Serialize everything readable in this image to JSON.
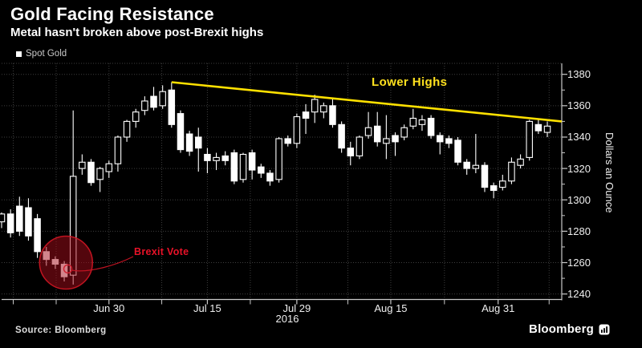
{
  "header": {
    "title": "Gold Facing Resistance",
    "subtitle": "Metal hasn't broken above post-Brexit highs"
  },
  "legend": {
    "label": "Spot Gold"
  },
  "annotations": {
    "lower_highs": "Lower Highs",
    "brexit_vote": "Brexit Vote"
  },
  "footer": {
    "source": "Source: Bloomberg",
    "brand": "Bloomberg"
  },
  "colors": {
    "background": "#000000",
    "candle": "#ffffff",
    "trendline": "#ffe100",
    "brexit_red": "#e81228",
    "grid": "#3e3e3e",
    "axis": "#c9c9c9"
  },
  "chart_data": {
    "type": "candlestick",
    "series_name": "Spot Gold",
    "ylabel": "Dollars an Ounce",
    "year_label": "2016",
    "ylim": [
      1236.5,
      1387
    ],
    "y_ticks": [
      1240,
      1260,
      1280,
      1300,
      1320,
      1340,
      1360,
      1380
    ],
    "y_minor_ticks": [
      1250,
      1270,
      1290,
      1310,
      1330,
      1350,
      1370
    ],
    "x_ticks": [
      {
        "pos": 12,
        "label": "Jun 30"
      },
      {
        "pos": 23,
        "label": "Jul 15"
      },
      {
        "pos": 33,
        "label": "Jul 29"
      },
      {
        "pos": 43.5,
        "label": "Aug 15"
      },
      {
        "pos": 55.5,
        "label": "Aug 31"
      }
    ],
    "x_minor_ticks": [
      1.3,
      6.1,
      17.9,
      27.8,
      38.7,
      49.5,
      61.2
    ],
    "candles": [
      [
        1286,
        1292,
        1282,
        1291
      ],
      [
        1291,
        1294,
        1276,
        1279
      ],
      [
        1296,
        1302,
        1277,
        1280
      ],
      [
        1295,
        1301,
        1274,
        1277
      ],
      [
        1288,
        1291,
        1263,
        1267
      ],
      [
        1267,
        1270,
        1258,
        1262
      ],
      [
        1262,
        1264,
        1256,
        1259
      ],
      [
        1259,
        1261,
        1248,
        1251
      ],
      [
        1252,
        1357,
        1246,
        1315
      ],
      [
        1320,
        1329,
        1316,
        1324
      ],
      [
        1324,
        1326,
        1309,
        1311
      ],
      [
        1313,
        1321,
        1305,
        1320
      ],
      [
        1318,
        1325,
        1314,
        1323
      ],
      [
        1323,
        1341,
        1318,
        1340
      ],
      [
        1340,
        1351,
        1337,
        1350
      ],
      [
        1350,
        1358,
        1346,
        1356
      ],
      [
        1357,
        1366,
        1354,
        1363
      ],
      [
        1366,
        1372,
        1357,
        1359
      ],
      [
        1360,
        1373,
        1358,
        1369
      ],
      [
        1370,
        1375,
        1346,
        1348
      ],
      [
        1355,
        1357,
        1330,
        1332
      ],
      [
        1342,
        1344,
        1328,
        1331
      ],
      [
        1340,
        1346,
        1318,
        1333
      ],
      [
        1329,
        1333,
        1317,
        1325
      ],
      [
        1325,
        1330,
        1319,
        1327
      ],
      [
        1328,
        1331,
        1322,
        1325
      ],
      [
        1330,
        1332,
        1310,
        1312
      ],
      [
        1313,
        1330,
        1311,
        1329
      ],
      [
        1330,
        1332,
        1313,
        1319
      ],
      [
        1321,
        1323,
        1314,
        1317
      ],
      [
        1317,
        1319,
        1309,
        1312
      ],
      [
        1313,
        1340,
        1311,
        1339
      ],
      [
        1339,
        1341,
        1334,
        1336
      ],
      [
        1336,
        1355,
        1333,
        1353
      ],
      [
        1356,
        1361,
        1342,
        1352
      ],
      [
        1356,
        1367,
        1349,
        1364
      ],
      [
        1356,
        1362,
        1352,
        1360
      ],
      [
        1360,
        1364,
        1346,
        1348
      ],
      [
        1348,
        1350,
        1330,
        1333
      ],
      [
        1333,
        1337,
        1322,
        1328
      ],
      [
        1328,
        1341,
        1326,
        1340
      ],
      [
        1341,
        1356,
        1339,
        1346
      ],
      [
        1347,
        1356,
        1334,
        1337
      ],
      [
        1336,
        1354,
        1326,
        1339
      ],
      [
        1341,
        1343,
        1328,
        1337
      ],
      [
        1340,
        1348,
        1338,
        1346
      ],
      [
        1347,
        1358,
        1345,
        1352
      ],
      [
        1348,
        1354,
        1344,
        1351
      ],
      [
        1352,
        1354,
        1339,
        1341
      ],
      [
        1341,
        1343,
        1329,
        1337
      ],
      [
        1339,
        1341,
        1333,
        1336
      ],
      [
        1338,
        1340,
        1322,
        1324
      ],
      [
        1324,
        1326,
        1316,
        1320
      ],
      [
        1320,
        1342,
        1317,
        1322
      ],
      [
        1322,
        1324,
        1305,
        1308
      ],
      [
        1309,
        1311,
        1301,
        1306
      ],
      [
        1308,
        1316,
        1306,
        1312
      ],
      [
        1312,
        1327,
        1310,
        1324
      ],
      [
        1322,
        1329,
        1320,
        1326
      ],
      [
        1327,
        1351,
        1325,
        1350
      ],
      [
        1348,
        1351,
        1342,
        1344
      ],
      [
        1343,
        1350,
        1340,
        1347
      ]
    ],
    "trendline": {
      "x1_index": 19,
      "value1": 1375,
      "x2_index": 62.6,
      "value2": 1350
    },
    "brexit_circle": {
      "x_index": 7.2,
      "value": 1260,
      "radius_px": 33
    },
    "brexit_point": {
      "x_index": 7.4,
      "value": 1256
    }
  }
}
